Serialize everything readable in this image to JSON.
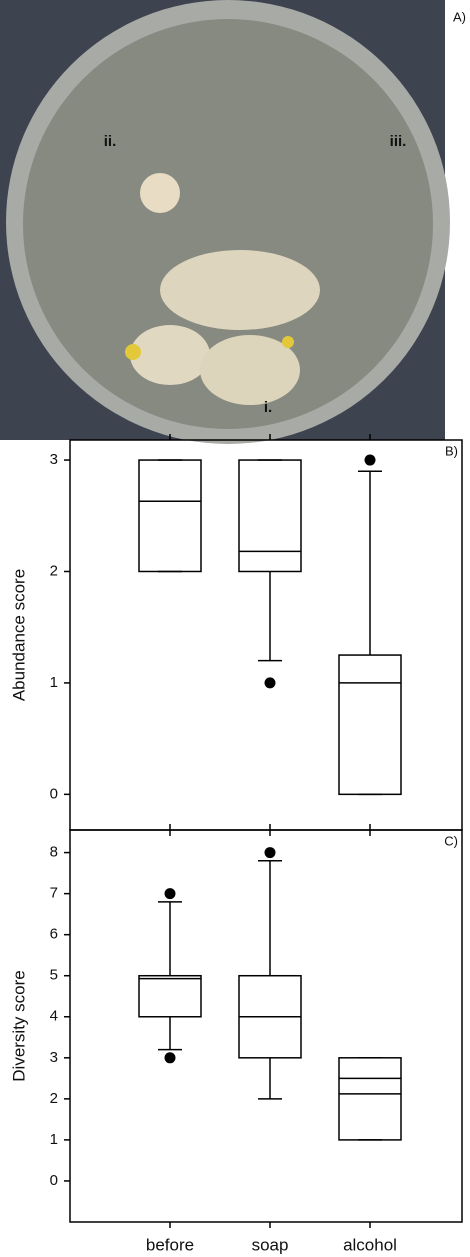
{
  "photo": {
    "panel_label": "A)",
    "region_labels": [
      "i.",
      "ii.",
      "iii."
    ]
  },
  "chart_data": [
    {
      "type": "box",
      "panel_label": "B)",
      "ylabel": "Abundance score",
      "ylim": [
        -0.32,
        3.18
      ],
      "yticks": [
        0,
        1,
        2,
        3
      ],
      "series": [
        {
          "min": 2,
          "q1": 2,
          "median": 2.63,
          "q3": 3,
          "max": 3,
          "outliers": []
        },
        {
          "min": 1.2,
          "q1": 2,
          "median": 2.18,
          "q3": 3,
          "max": 3,
          "outliers": [
            1
          ]
        },
        {
          "min": 0,
          "q1": 0,
          "median": 1,
          "q3": 1.25,
          "max": 2.9,
          "outliers": [
            3
          ]
        }
      ]
    },
    {
      "type": "box",
      "panel_label": "C)",
      "ylabel": "Diversity score",
      "categories": [
        "before",
        "soap",
        "alcohol"
      ],
      "ylim": [
        -1,
        8.55
      ],
      "yticks": [
        0,
        1,
        2,
        3,
        4,
        5,
        6,
        7,
        8
      ],
      "series": [
        {
          "min": 3.2,
          "q1": 4,
          "median": 4.93,
          "q3": 5,
          "max": 6.8,
          "outliers": [
            3,
            7
          ]
        },
        {
          "min": 2,
          "q1": 3,
          "median": 4,
          "q3": 5,
          "max": 7.8,
          "outliers": [
            8
          ]
        },
        {
          "min": 1,
          "q1": 1,
          "median": 2.5,
          "q3": 3,
          "max": 3,
          "outliers": [],
          "mean": 2.12
        }
      ]
    }
  ]
}
